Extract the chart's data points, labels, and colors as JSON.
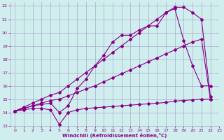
{
  "xlabel": "Windchill (Refroidissement éolien,°C)",
  "bg_color": "#d0eeee",
  "grid_color": "#aaaacc",
  "line_color": "#880088",
  "xlim": [
    -0.5,
    23
  ],
  "ylim": [
    13,
    22.3
  ],
  "xticks": [
    0,
    1,
    2,
    3,
    4,
    5,
    6,
    7,
    8,
    9,
    10,
    11,
    12,
    13,
    14,
    15,
    16,
    17,
    18,
    19,
    20,
    21,
    22,
    23
  ],
  "yticks": [
    13,
    14,
    15,
    16,
    17,
    18,
    19,
    20,
    21,
    22
  ],
  "line1_x": [
    0,
    1,
    2,
    3,
    4,
    5,
    6,
    7,
    8,
    9,
    10,
    11,
    12,
    13,
    14,
    15,
    16,
    17,
    18,
    19,
    20,
    21,
    22
  ],
  "line1_y": [
    14.1,
    14.2,
    14.3,
    14.3,
    14.2,
    13.1,
    14.0,
    14.2,
    14.3,
    14.35,
    14.4,
    14.45,
    14.5,
    14.55,
    14.6,
    14.65,
    14.7,
    14.75,
    14.85,
    14.9,
    14.95,
    15.0,
    15.0
  ],
  "line2_x": [
    0,
    1,
    2,
    3,
    4,
    5,
    6,
    7,
    8,
    9,
    10,
    11,
    12,
    13,
    14,
    15,
    16,
    17,
    18,
    19,
    20,
    21,
    22
  ],
  "line2_y": [
    14.1,
    14.3,
    14.5,
    14.7,
    14.9,
    15.0,
    15.25,
    15.5,
    15.75,
    16.0,
    16.3,
    16.6,
    16.9,
    17.2,
    17.5,
    17.8,
    18.1,
    18.4,
    18.7,
    19.0,
    19.3,
    19.5,
    15.0
  ],
  "line3_x": [
    0,
    1,
    2,
    3,
    4,
    5,
    6,
    7,
    8,
    9,
    10,
    11,
    12,
    13,
    14,
    15,
    16,
    17,
    18,
    19,
    20,
    21,
    22
  ],
  "line3_y": [
    14.1,
    14.3,
    14.5,
    14.6,
    14.7,
    14.0,
    14.5,
    15.8,
    16.5,
    17.5,
    18.3,
    19.3,
    19.8,
    19.8,
    20.2,
    20.5,
    20.5,
    21.5,
    21.8,
    19.4,
    17.5,
    16.0,
    16.0
  ],
  "line4_x": [
    0,
    1,
    2,
    3,
    4,
    5,
    6,
    7,
    8,
    9,
    10,
    11,
    12,
    13,
    14,
    15,
    16,
    17,
    18,
    19,
    20,
    21,
    22
  ],
  "line4_y": [
    14.1,
    14.4,
    14.7,
    15.0,
    15.3,
    15.5,
    16.0,
    16.5,
    17.0,
    17.5,
    18.0,
    18.5,
    19.0,
    19.5,
    20.0,
    20.5,
    21.0,
    21.5,
    21.9,
    21.9,
    21.5,
    21.0,
    15.2
  ]
}
